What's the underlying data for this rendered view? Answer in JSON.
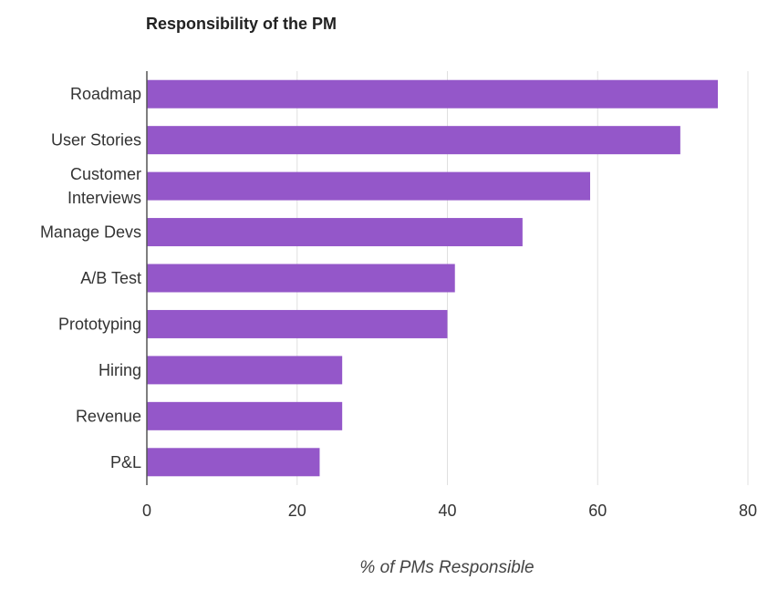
{
  "chart_data": {
    "type": "bar",
    "orientation": "horizontal",
    "title": "Responsibility of the PM",
    "xlabel": "% of PMs Responsible",
    "ylabel": "",
    "categories": [
      [
        "Roadmap"
      ],
      [
        "User Stories"
      ],
      [
        "Customer",
        "Interviews"
      ],
      [
        "Manage Devs"
      ],
      [
        "A/B Test"
      ],
      [
        "Prototyping"
      ],
      [
        "Hiring"
      ],
      [
        "Revenue"
      ],
      [
        "P&L"
      ]
    ],
    "values": [
      76,
      71,
      59,
      50,
      41,
      40,
      26,
      26,
      23
    ],
    "xlim": [
      0,
      80
    ],
    "xticks": [
      0,
      20,
      40,
      60,
      80
    ],
    "grid": true,
    "legend": "none",
    "colors": {
      "bar": "#9457c9",
      "grid": "#e0e0e0",
      "axis": "#555555",
      "text": "#333333"
    }
  }
}
